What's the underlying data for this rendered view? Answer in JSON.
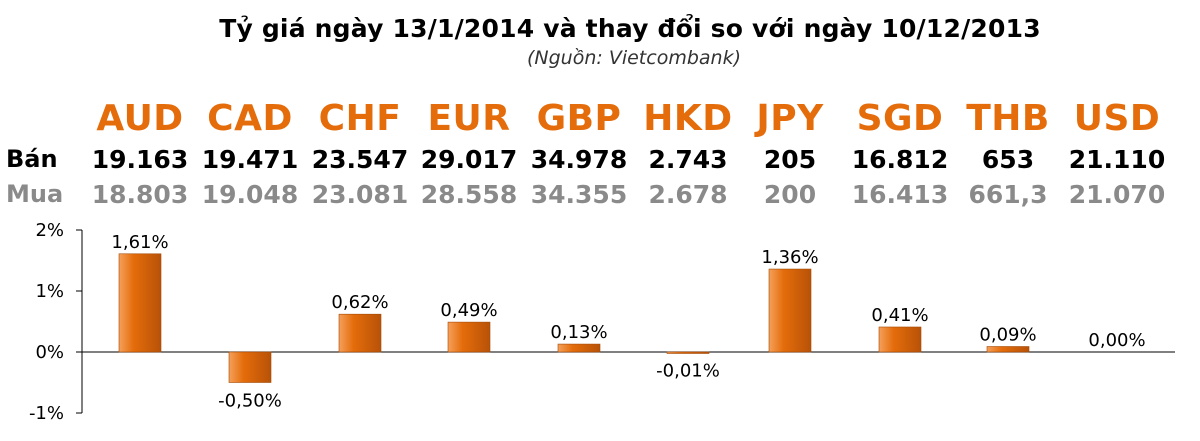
{
  "title": "Tỷ giá ngày 13/1/2014 và thay đổi so với ngày 10/12/2013",
  "subtitle": "(Nguồn: Vietcombank)",
  "row_labels": {
    "sell": "Bán",
    "buy": "Mua"
  },
  "colors": {
    "accent": "#e46c0a",
    "bar": "#e46c0a",
    "muted": "#8a8a8a"
  },
  "currencies": [
    {
      "code": "AUD",
      "sell": "19.163",
      "buy": "18.803"
    },
    {
      "code": "CAD",
      "sell": "19.471",
      "buy": "19.048"
    },
    {
      "code": "CHF",
      "sell": "23.547",
      "buy": "23.081"
    },
    {
      "code": "EUR",
      "sell": "29.017",
      "buy": "28.558"
    },
    {
      "code": "GBP",
      "sell": "34.978",
      "buy": "34.355"
    },
    {
      "code": "HKD",
      "sell": "2.743",
      "buy": "2.678"
    },
    {
      "code": "JPY",
      "sell": "205",
      "buy": "200"
    },
    {
      "code": "SGD",
      "sell": "16.812",
      "buy": "16.413"
    },
    {
      "code": "THB",
      "sell": "653",
      "buy": "661,3"
    },
    {
      "code": "USD",
      "sell": "21.110",
      "buy": "21.070"
    }
  ],
  "chart_data": {
    "type": "bar",
    "categories": [
      "AUD",
      "CAD",
      "CHF",
      "EUR",
      "GBP",
      "HKD",
      "JPY",
      "SGD",
      "THB",
      "USD"
    ],
    "values": [
      1.61,
      -0.5,
      0.62,
      0.49,
      0.13,
      -0.01,
      1.36,
      0.41,
      0.09,
      0.0
    ],
    "data_labels": [
      "1,61%",
      "-0,50%",
      "0,62%",
      "0,49%",
      "0,13%",
      "-0,01%",
      "1,36%",
      "0,41%",
      "0,09%",
      "0,00%"
    ],
    "ylim": [
      -1,
      2
    ],
    "yticks": [
      2,
      1,
      0,
      -1
    ],
    "ytick_labels": [
      "2%",
      "1%",
      "0%",
      "-1%"
    ],
    "grid": false,
    "legend": "none"
  }
}
